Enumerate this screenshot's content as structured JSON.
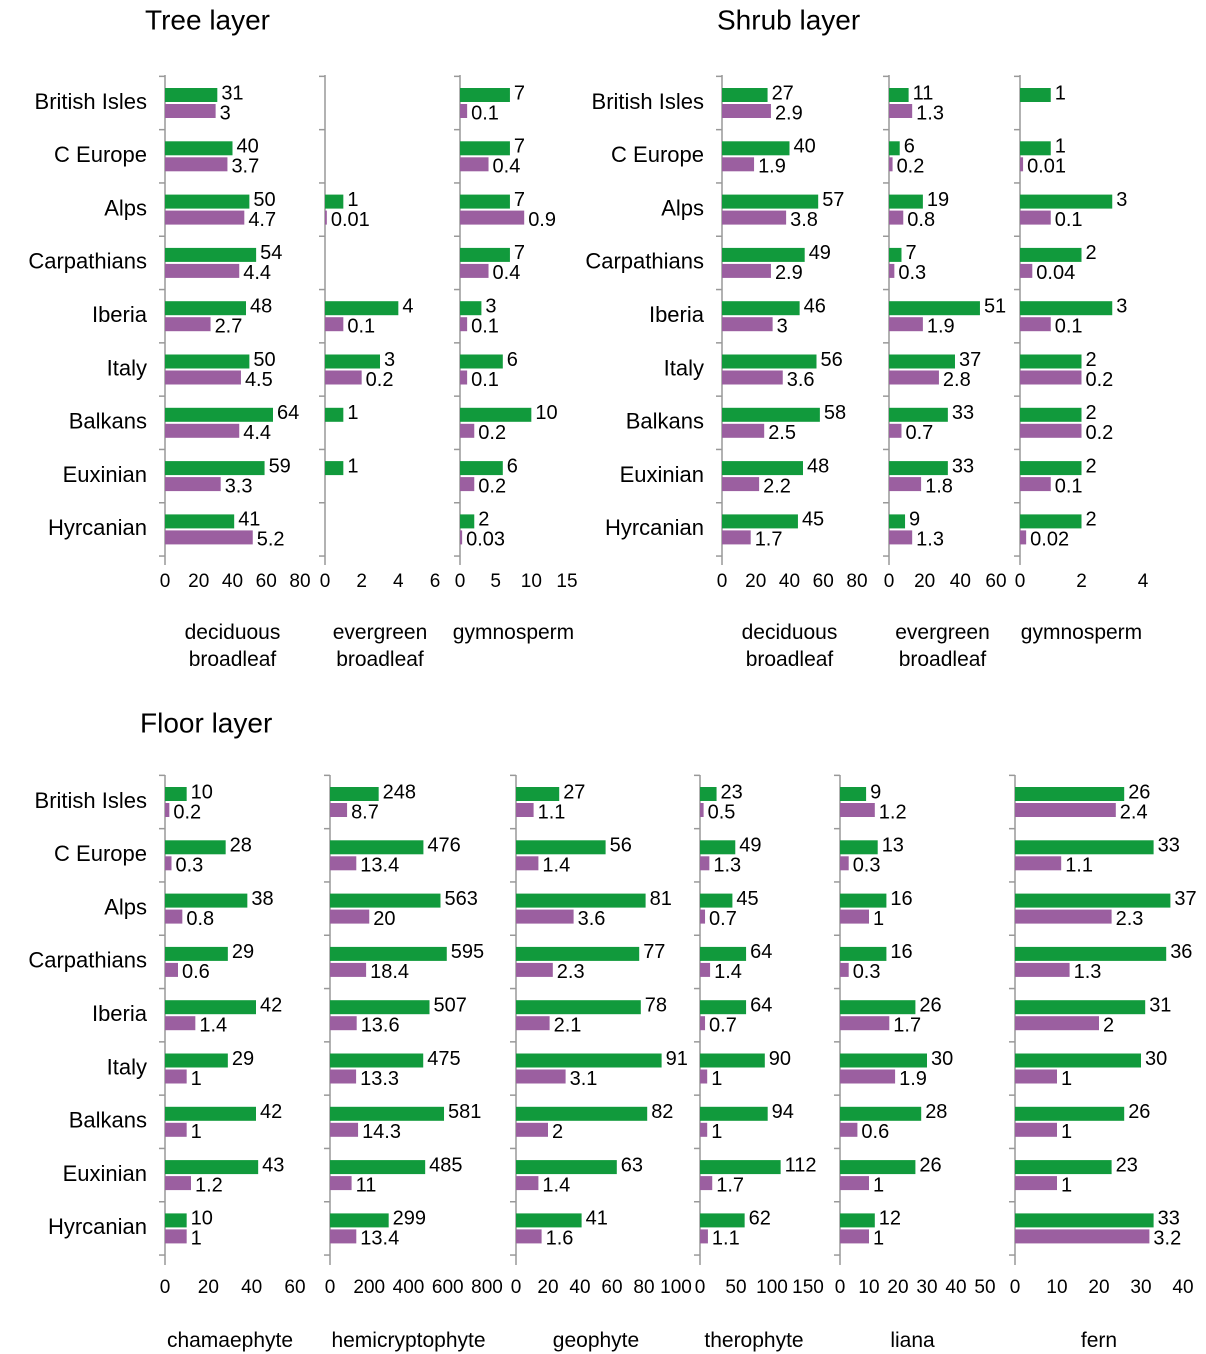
{
  "headings": [
    "Tree layer",
    "Shrub layer",
    "Floor layer"
  ],
  "chart_data": [
    {
      "type": "bar",
      "xlabel": "deciduous broadleaf",
      "categories": [
        "British Isles",
        "C Europe",
        "Alps",
        "Carpathians",
        "Iberia",
        "Italy",
        "Balkans",
        "Euxinian",
        "Hyrcanian"
      ],
      "series": [
        {
          "color": "#119a3c",
          "values": [
            31,
            40,
            50,
            54,
            48,
            50,
            64,
            59,
            41
          ]
        },
        {
          "color": "#9b5fa0",
          "axis": "x2",
          "values": [
            3,
            3.7,
            4.7,
            4.4,
            2.7,
            4.5,
            4.4,
            3.3,
            5.2
          ]
        }
      ],
      "xlim": [
        0,
        80
      ],
      "xticks": [
        0,
        20,
        40,
        60,
        80
      ],
      "x2lim": [
        0,
        8
      ]
    },
    {
      "type": "bar",
      "xlabel": "evergreen broadleaf",
      "series": [
        {
          "color": "#119a3c",
          "values": [
            null,
            null,
            1,
            null,
            4,
            3,
            1,
            1,
            null
          ]
        },
        {
          "color": "#9b5fa0",
          "axis": "x2",
          "values": [
            null,
            null,
            0.01,
            null,
            0.1,
            0.2,
            null,
            null,
            null
          ]
        }
      ],
      "xlim": [
        0,
        6
      ],
      "xticks": [
        0,
        2,
        4,
        6
      ],
      "x2lim": [
        0,
        0.6
      ]
    },
    {
      "type": "bar",
      "xlabel": "gymnosperm",
      "series": [
        {
          "color": "#119a3c",
          "values": [
            7,
            7,
            7,
            7,
            3,
            6,
            10,
            6,
            2
          ]
        },
        {
          "color": "#9b5fa0",
          "axis": "x2",
          "values": [
            0.1,
            0.4,
            0.9,
            0.4,
            0.1,
            0.1,
            0.2,
            0.2,
            0.03
          ]
        }
      ],
      "xlim": [
        0,
        15
      ],
      "xticks": [
        0,
        5,
        10,
        15
      ],
      "x2lim": [
        0,
        1.5
      ]
    },
    {
      "type": "bar",
      "xlabel": "deciduous broadleaf",
      "categories": [
        "British Isles",
        "C Europe",
        "Alps",
        "Carpathians",
        "Iberia",
        "Italy",
        "Balkans",
        "Euxinian",
        "Hyrcanian"
      ],
      "series": [
        {
          "color": "#119a3c",
          "values": [
            27,
            40,
            57,
            49,
            46,
            56,
            58,
            48,
            45
          ]
        },
        {
          "color": "#9b5fa0",
          "axis": "x2",
          "values": [
            2.9,
            1.9,
            3.8,
            2.9,
            3,
            3.6,
            2.5,
            2.2,
            1.7
          ]
        }
      ],
      "xlim": [
        0,
        80
      ],
      "xticks": [
        0,
        20,
        40,
        60,
        80
      ],
      "x2lim": [
        0,
        8
      ]
    },
    {
      "type": "bar",
      "xlabel": "evergreen broadleaf",
      "series": [
        {
          "color": "#119a3c",
          "values": [
            11,
            6,
            19,
            7,
            51,
            37,
            33,
            33,
            9
          ]
        },
        {
          "color": "#9b5fa0",
          "axis": "x2",
          "values": [
            1.3,
            0.2,
            0.8,
            0.3,
            1.9,
            2.8,
            0.7,
            1.8,
            1.3
          ]
        }
      ],
      "xlim": [
        0,
        60
      ],
      "xticks": [
        0,
        20,
        40,
        60
      ],
      "x2lim": [
        0,
        6
      ]
    },
    {
      "type": "bar",
      "xlabel": "gymnosperm",
      "series": [
        {
          "color": "#119a3c",
          "values": [
            1,
            1,
            3,
            2,
            3,
            2,
            2,
            2,
            2
          ]
        },
        {
          "color": "#9b5fa0",
          "axis": "x2",
          "values": [
            null,
            0.01,
            0.1,
            0.04,
            0.1,
            0.2,
            0.2,
            0.1,
            0.02
          ]
        }
      ],
      "xlim": [
        0,
        4
      ],
      "xticks": [
        0,
        2,
        4
      ],
      "x2lim": [
        0,
        0.4
      ]
    },
    {
      "type": "bar",
      "xlabel": "chamaephyte",
      "categories": [
        "British Isles",
        "C Europe",
        "Alps",
        "Carpathians",
        "Iberia",
        "Italy",
        "Balkans",
        "Euxinian",
        "Hyrcanian"
      ],
      "series": [
        {
          "color": "#119a3c",
          "values": [
            10,
            28,
            38,
            29,
            42,
            29,
            42,
            43,
            10
          ]
        },
        {
          "color": "#9b5fa0",
          "axis": "x2",
          "values": [
            0.2,
            0.3,
            0.8,
            0.6,
            1.4,
            1,
            1,
            1.2,
            1
          ]
        }
      ],
      "xlim": [
        0,
        60
      ],
      "xticks": [
        0,
        20,
        40,
        60
      ],
      "x2lim": [
        0,
        6
      ]
    },
    {
      "type": "bar",
      "xlabel": "hemicryptophyte",
      "series": [
        {
          "color": "#119a3c",
          "values": [
            248,
            476,
            563,
            595,
            507,
            475,
            581,
            485,
            299
          ]
        },
        {
          "color": "#9b5fa0",
          "axis": "x2",
          "values": [
            8.7,
            13.4,
            20,
            18.4,
            13.6,
            13.3,
            14.3,
            11,
            13.4
          ]
        }
      ],
      "xlim": [
        0,
        800
      ],
      "xticks": [
        0,
        200,
        400,
        600,
        800
      ],
      "x2lim": [
        0,
        80
      ]
    },
    {
      "type": "bar",
      "xlabel": "geophyte",
      "series": [
        {
          "color": "#119a3c",
          "values": [
            27,
            56,
            81,
            77,
            78,
            91,
            82,
            63,
            41
          ]
        },
        {
          "color": "#9b5fa0",
          "axis": "x2",
          "values": [
            1.1,
            1.4,
            3.6,
            2.3,
            2.1,
            3.1,
            2,
            1.4,
            1.6
          ]
        }
      ],
      "xlim": [
        0,
        100
      ],
      "xticks": [
        0,
        20,
        40,
        60,
        80,
        100
      ],
      "x2lim": [
        0,
        10
      ]
    },
    {
      "type": "bar",
      "xlabel": "therophyte",
      "series": [
        {
          "color": "#119a3c",
          "values": [
            23,
            49,
            45,
            64,
            64,
            90,
            94,
            112,
            62
          ]
        },
        {
          "color": "#9b5fa0",
          "axis": "x2",
          "values": [
            0.5,
            1.3,
            0.7,
            1.4,
            0.7,
            1,
            1,
            1.7,
            1.1
          ]
        }
      ],
      "xlim": [
        0,
        150
      ],
      "xticks": [
        0,
        50,
        100,
        150
      ],
      "x2lim": [
        0,
        15
      ]
    },
    {
      "type": "bar",
      "xlabel": "liana",
      "series": [
        {
          "color": "#119a3c",
          "values": [
            9,
            13,
            16,
            16,
            26,
            30,
            28,
            26,
            12
          ]
        },
        {
          "color": "#9b5fa0",
          "axis": "x2",
          "values": [
            1.2,
            0.3,
            1,
            0.3,
            1.7,
            1.9,
            0.6,
            1,
            1
          ]
        }
      ],
      "xlim": [
        0,
        50
      ],
      "xticks": [
        0,
        10,
        20,
        30,
        40,
        50
      ],
      "x2lim": [
        0,
        5
      ]
    },
    {
      "type": "bar",
      "xlabel": "fern",
      "series": [
        {
          "color": "#119a3c",
          "values": [
            26,
            33,
            37,
            36,
            31,
            30,
            26,
            23,
            33
          ]
        },
        {
          "color": "#9b5fa0",
          "axis": "x2",
          "values": [
            2.4,
            1.1,
            2.3,
            1.3,
            2,
            1,
            1,
            1,
            3.2
          ]
        }
      ],
      "xlim": [
        0,
        40
      ],
      "xticks": [
        0,
        10,
        20,
        30,
        40
      ],
      "x2lim": [
        0,
        4
      ]
    }
  ]
}
